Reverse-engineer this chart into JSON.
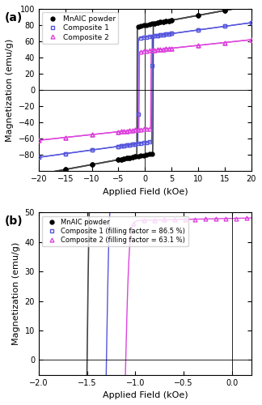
{
  "panel_a": {
    "title": "(a)",
    "xlabel": "Applied Field (kOe)",
    "ylabel": "Magnetization (emu/g)",
    "xlim": [
      -20,
      20
    ],
    "ylim": [
      -100,
      100
    ],
    "xticks": [
      -20,
      -15,
      -10,
      -5,
      0,
      5,
      10,
      15,
      20
    ],
    "yticks": [
      -80,
      -60,
      -40,
      -20,
      0,
      20,
      40,
      60,
      80,
      100
    ],
    "MnAlC_Ms": 80,
    "MnAlC_Hc": 1.5,
    "MnAlC_slope": 1.2,
    "MnAlC_steep": 35,
    "Comp1_Ms": 65,
    "Comp1_Hc": 1.3,
    "Comp1_slope": 0.9,
    "Comp1_steep": 30,
    "Comp2_Ms": 48,
    "Comp2_Hc": 1.1,
    "Comp2_slope": 0.7,
    "Comp2_steep": 28,
    "color_mnalc": "#444444",
    "color_c1": "#5555dd",
    "color_c2": "#dd44dd",
    "label_mnalc": "MnAlC powder",
    "label_c1": "Composite 1",
    "label_c2": "Composite 2"
  },
  "panel_b": {
    "title": "(b)",
    "xlabel": "Applied Field (kOe)",
    "ylabel": "Magnetization (emu/g)",
    "xlim": [
      -2.0,
      0.2
    ],
    "ylim": [
      -5,
      50
    ],
    "xticks": [
      -2.0,
      -1.5,
      -1.0,
      -0.5,
      0.0
    ],
    "yticks": [
      0,
      10,
      20,
      30,
      40,
      50
    ],
    "label_mnalc": "MnAlC powder",
    "label_c1": "Composite 1 (filling factor = 86.5 %)",
    "label_c2": "Composite 2 (filling factor = 63.1 %)",
    "color_mnalc": "#444444",
    "color_c1": "#5555dd",
    "color_c2": "#dd44dd"
  }
}
